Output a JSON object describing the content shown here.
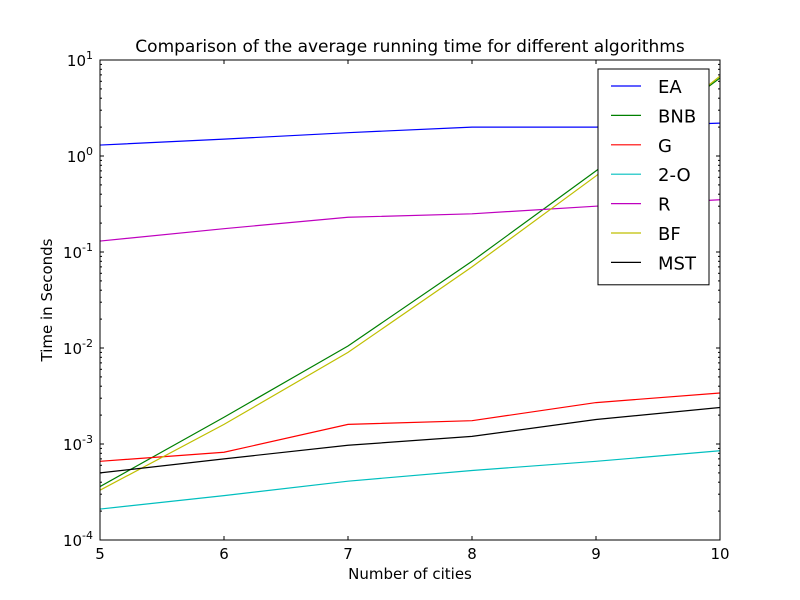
{
  "chart_data": {
    "type": "line",
    "title": "Comparison of the average running time for different algorithms",
    "xlabel": "Number of cities",
    "ylabel": "Time in Seconds",
    "x": [
      5,
      6,
      7,
      8,
      9,
      10
    ],
    "xlim": [
      5,
      10
    ],
    "ylim": [
      0.0001,
      10
    ],
    "yscale": "log",
    "xticks": [
      "5",
      "6",
      "7",
      "8",
      "9",
      "10"
    ],
    "yticks": [
      {
        "base": "10",
        "exp": "-4",
        "value": 0.0001
      },
      {
        "base": "10",
        "exp": "-3",
        "value": 0.001
      },
      {
        "base": "10",
        "exp": "-2",
        "value": 0.01
      },
      {
        "base": "10",
        "exp": "-1",
        "value": 0.1
      },
      {
        "base": "10",
        "exp": "0",
        "value": 1
      },
      {
        "base": "10",
        "exp": "1",
        "value": 10
      }
    ],
    "grid": false,
    "legend_position": "top-right",
    "series": [
      {
        "name": "EA",
        "color": "#0000ff",
        "values": [
          1.3,
          1.5,
          1.75,
          2.0,
          2.0,
          2.2
        ]
      },
      {
        "name": "BNB",
        "color": "#008000",
        "values": [
          0.00036,
          0.0019,
          0.0105,
          0.08,
          0.7,
          6.5
        ]
      },
      {
        "name": "G",
        "color": "#ff0000",
        "values": [
          0.00066,
          0.00082,
          0.0016,
          0.00175,
          0.0027,
          0.0034
        ]
      },
      {
        "name": "2-O",
        "color": "#00bfbf",
        "values": [
          0.00021,
          0.00029,
          0.00041,
          0.00053,
          0.00066,
          0.00085
        ]
      },
      {
        "name": "R",
        "color": "#bf00bf",
        "values": [
          0.13,
          0.175,
          0.23,
          0.25,
          0.3,
          0.35
        ]
      },
      {
        "name": "BF",
        "color": "#bfbf00",
        "values": [
          0.00033,
          0.0016,
          0.009,
          0.07,
          0.62,
          6.8
        ]
      },
      {
        "name": "MST",
        "color": "#000000",
        "values": [
          0.0005,
          0.0007,
          0.00097,
          0.0012,
          0.0018,
          0.0024
        ]
      }
    ]
  }
}
